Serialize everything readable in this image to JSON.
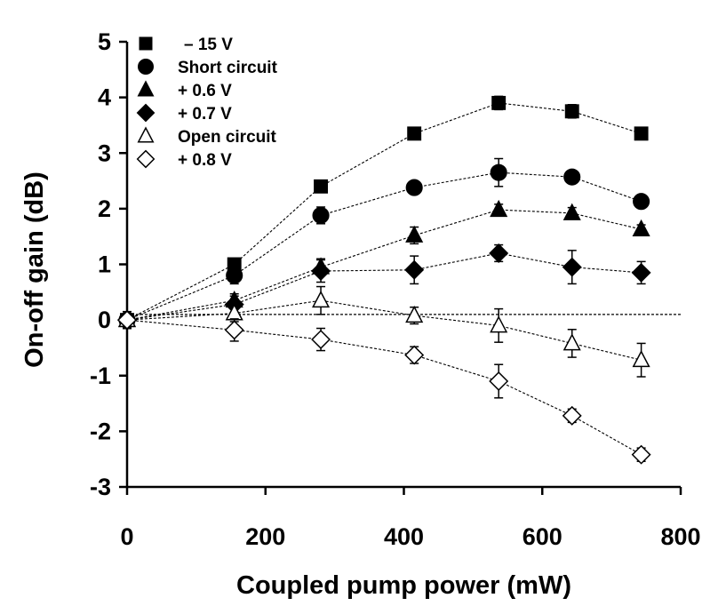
{
  "chart_data": {
    "type": "scatter",
    "xlabel": "Coupled pump power (mW)",
    "ylabel": "On-off gain (dB)",
    "xlim": [
      0,
      800
    ],
    "ylim": [
      -3,
      5
    ],
    "x_ticks": [
      "0",
      "200",
      "400",
      "600",
      "800"
    ],
    "y_ticks": [
      "5",
      "4",
      "3",
      "2",
      "1",
      "0",
      "-1",
      "-2",
      "-3"
    ],
    "reference_line": 0.1,
    "legend_position": "top-left",
    "series": [
      {
        "name": "– 15 V",
        "marker": "square-filled",
        "x": [
          0,
          155,
          280,
          415,
          537,
          643,
          743
        ],
        "values": [
          0,
          1.0,
          2.4,
          3.35,
          3.9,
          3.75,
          3.35
        ],
        "errors": [
          0.15,
          0.1,
          0.08,
          0.1,
          0.12,
          0.12,
          0.08
        ]
      },
      {
        "name": "Short circuit",
        "marker": "circle-filled",
        "x": [
          0,
          155,
          280,
          415,
          537,
          643,
          743
        ],
        "values": [
          0,
          0.8,
          1.88,
          2.38,
          2.65,
          2.57,
          2.13
        ],
        "errors": [
          0.15,
          0.15,
          0.15,
          0.1,
          0.25,
          0.08,
          0.08
        ]
      },
      {
        "name": "+ 0.6 V",
        "marker": "triangle-filled",
        "x": [
          0,
          155,
          280,
          415,
          537,
          643,
          743
        ],
        "values": [
          0,
          0.35,
          0.95,
          1.52,
          1.98,
          1.92,
          1.63
        ],
        "errors": [
          0.15,
          0.12,
          0.15,
          0.15,
          0.1,
          0.1,
          0.08
        ]
      },
      {
        "name": "+ 0.7 V",
        "marker": "diamond-filled",
        "x": [
          0,
          155,
          280,
          415,
          537,
          643,
          743
        ],
        "values": [
          0,
          0.28,
          0.88,
          0.9,
          1.2,
          0.95,
          0.85
        ],
        "errors": [
          0.15,
          0.15,
          0.2,
          0.25,
          0.15,
          0.3,
          0.2
        ]
      },
      {
        "name": "Open circuit",
        "marker": "triangle-open",
        "x": [
          0,
          155,
          280,
          415,
          537,
          643,
          743
        ],
        "values": [
          0,
          0.12,
          0.35,
          0.08,
          -0.1,
          -0.42,
          -0.72
        ],
        "errors": [
          0.15,
          0.15,
          0.25,
          0.15,
          0.3,
          0.25,
          0.3
        ]
      },
      {
        "name": "+ 0.8 V",
        "marker": "diamond-open",
        "x": [
          0,
          155,
          280,
          415,
          537,
          643,
          743
        ],
        "values": [
          0,
          -0.18,
          -0.35,
          -0.63,
          -1.1,
          -1.72,
          -2.42
        ],
        "errors": [
          0.15,
          0.2,
          0.2,
          0.15,
          0.3,
          0.12,
          0.12
        ]
      }
    ]
  }
}
